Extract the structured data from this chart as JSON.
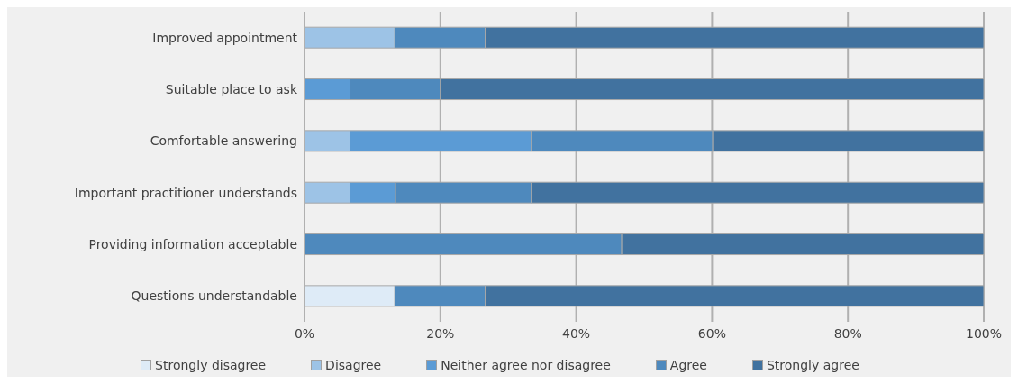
{
  "chart_data": {
    "type": "bar",
    "orientation": "horizontal",
    "stacked": true,
    "categories": [
      "Improved appointment",
      "Suitable place to ask",
      "Comfortable answering",
      "Important practitioner understands",
      "Providing information acceptable",
      "Questions understandable"
    ],
    "series": [
      {
        "name": "Strongly disagree",
        "color": "#deebf7",
        "values": [
          0,
          0,
          0,
          0,
          0,
          13.3
        ]
      },
      {
        "name": "Disagree",
        "color": "#9dc3e6",
        "values": [
          13.3,
          0,
          6.7,
          6.7,
          0,
          0
        ]
      },
      {
        "name": "Neither agree nor disagree",
        "color": "#5b9bd5",
        "values": [
          0,
          6.7,
          26.7,
          6.7,
          0,
          0
        ]
      },
      {
        "name": "Agree",
        "color": "#4e89bd",
        "values": [
          13.3,
          13.3,
          26.7,
          20,
          46.7,
          13.3
        ]
      },
      {
        "name": "Strongly agree",
        "color": "#41729f",
        "values": [
          73.4,
          80,
          40,
          66.6,
          53.3,
          73.4
        ]
      }
    ],
    "xlim": [
      0,
      100
    ],
    "xticks": [
      {
        "value": 0,
        "label": "0%"
      },
      {
        "value": 20,
        "label": "20%"
      },
      {
        "value": 40,
        "label": "40%"
      },
      {
        "value": 60,
        "label": "60%"
      },
      {
        "value": 80,
        "label": "80%"
      },
      {
        "value": 100,
        "label": "100%"
      }
    ],
    "grid": "x",
    "legend": "bottom"
  }
}
